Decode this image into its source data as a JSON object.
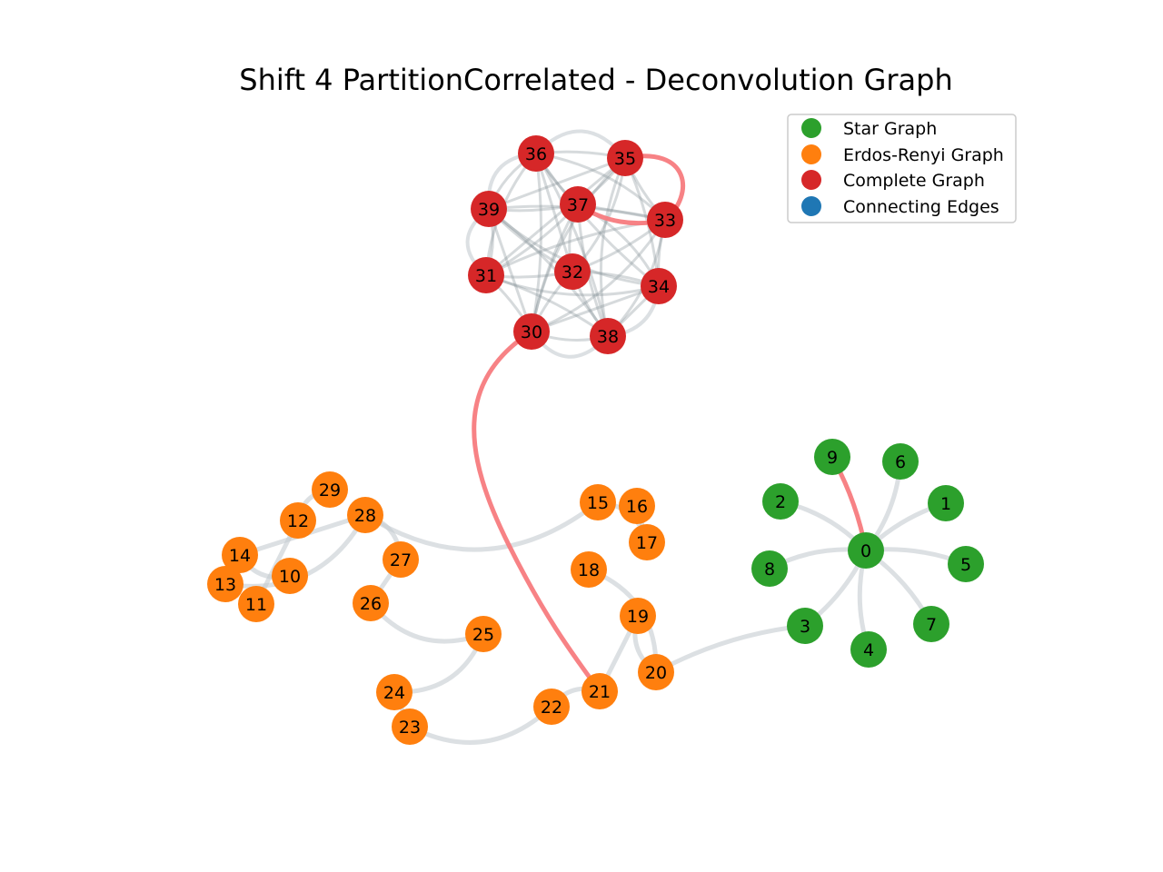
{
  "title": "Shift 4 PartitionCorrelated - Deconvolution Graph",
  "colors": {
    "star": "#2ca02c",
    "erdos": "#ff7f0e",
    "complete": "#d62728",
    "connecting": "#1f77b4",
    "edge_gray": "#c4cbd1",
    "edge_dark": "#8a949c",
    "edge_red": "#f77b7e"
  },
  "legend": [
    {
      "label": "Star Graph",
      "color": "#2ca02c"
    },
    {
      "label": "Erdos-Renyi Graph",
      "color": "#ff7f0e"
    },
    {
      "label": "Complete Graph",
      "color": "#d62728"
    },
    {
      "label": "Connecting Edges",
      "color": "#1f77b4"
    }
  ],
  "nodes": [
    {
      "id": "0",
      "group": "star"
    },
    {
      "id": "1",
      "group": "star"
    },
    {
      "id": "2",
      "group": "star"
    },
    {
      "id": "3",
      "group": "star"
    },
    {
      "id": "4",
      "group": "star"
    },
    {
      "id": "5",
      "group": "star"
    },
    {
      "id": "6",
      "group": "star"
    },
    {
      "id": "7",
      "group": "star"
    },
    {
      "id": "8",
      "group": "star"
    },
    {
      "id": "9",
      "group": "star"
    },
    {
      "id": "10",
      "group": "erdos"
    },
    {
      "id": "11",
      "group": "erdos"
    },
    {
      "id": "12",
      "group": "erdos"
    },
    {
      "id": "13",
      "group": "erdos"
    },
    {
      "id": "14",
      "group": "erdos"
    },
    {
      "id": "15",
      "group": "erdos"
    },
    {
      "id": "16",
      "group": "erdos"
    },
    {
      "id": "17",
      "group": "erdos"
    },
    {
      "id": "18",
      "group": "erdos"
    },
    {
      "id": "19",
      "group": "erdos"
    },
    {
      "id": "20",
      "group": "erdos"
    },
    {
      "id": "21",
      "group": "erdos"
    },
    {
      "id": "22",
      "group": "erdos"
    },
    {
      "id": "23",
      "group": "erdos"
    },
    {
      "id": "24",
      "group": "erdos"
    },
    {
      "id": "25",
      "group": "erdos"
    },
    {
      "id": "26",
      "group": "erdos"
    },
    {
      "id": "27",
      "group": "erdos"
    },
    {
      "id": "28",
      "group": "erdos"
    },
    {
      "id": "29",
      "group": "erdos"
    },
    {
      "id": "30",
      "group": "complete"
    },
    {
      "id": "31",
      "group": "complete"
    },
    {
      "id": "32",
      "group": "complete"
    },
    {
      "id": "33",
      "group": "complete"
    },
    {
      "id": "34",
      "group": "complete"
    },
    {
      "id": "35",
      "group": "complete"
    },
    {
      "id": "36",
      "group": "complete"
    },
    {
      "id": "37",
      "group": "complete"
    },
    {
      "id": "38",
      "group": "complete"
    },
    {
      "id": "39",
      "group": "complete"
    }
  ],
  "edges": {
    "star": [
      [
        "0",
        "1"
      ],
      [
        "0",
        "2"
      ],
      [
        "0",
        "3"
      ],
      [
        "0",
        "4"
      ],
      [
        "0",
        "5"
      ],
      [
        "0",
        "6"
      ],
      [
        "0",
        "7"
      ],
      [
        "0",
        "8"
      ]
    ],
    "erdos": [
      [
        "10",
        "14"
      ],
      [
        "11",
        "12"
      ],
      [
        "13",
        "28"
      ],
      [
        "12",
        "29"
      ],
      [
        "14",
        "28"
      ],
      [
        "28",
        "15"
      ],
      [
        "28",
        "27"
      ],
      [
        "26",
        "27"
      ],
      [
        "26",
        "25"
      ],
      [
        "25",
        "24"
      ],
      [
        "24",
        "23"
      ],
      [
        "23",
        "22"
      ],
      [
        "22",
        "21"
      ],
      [
        "21",
        "19"
      ],
      [
        "20",
        "18"
      ],
      [
        "15",
        "17"
      ],
      [
        "16",
        "17"
      ],
      [
        "19",
        "20"
      ]
    ],
    "complete_clique": [
      "30",
      "31",
      "32",
      "33",
      "34",
      "35",
      "36",
      "37",
      "38",
      "39"
    ],
    "highlighted": [
      [
        "0",
        "9"
      ],
      [
        "35",
        "37"
      ],
      [
        "30",
        "21"
      ]
    ],
    "connecting": [
      [
        "20",
        "3"
      ]
    ]
  }
}
